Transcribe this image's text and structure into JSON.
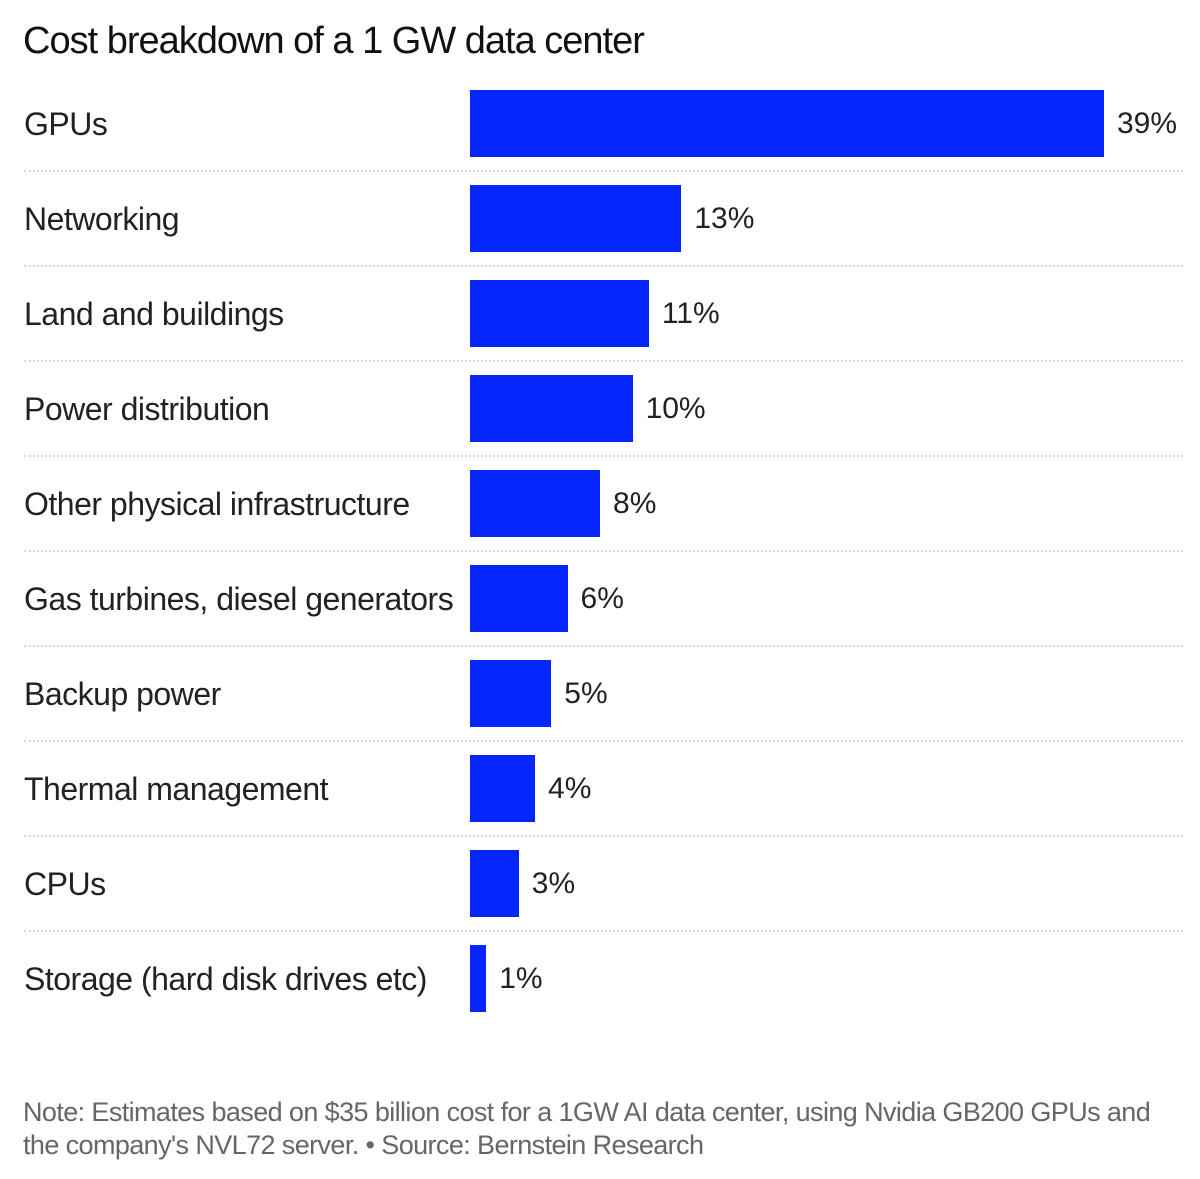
{
  "chart_data": {
    "type": "bar",
    "orientation": "horizontal",
    "title": "Cost breakdown of a 1 GW data center",
    "categories": [
      "GPUs",
      "Networking",
      "Land and buildings",
      "Power distribution",
      "Other physical infrastructure",
      "Gas turbines, diesel generators",
      "Backup power",
      "Thermal management",
      "CPUs",
      "Storage (hard disk drives etc)"
    ],
    "values": [
      39,
      13,
      11,
      10,
      8,
      6,
      5,
      4,
      3,
      1
    ],
    "value_labels": [
      "39%",
      "13%",
      "11%",
      "10%",
      "8%",
      "6%",
      "5%",
      "4%",
      "3%",
      "1%"
    ],
    "xlim": [
      0,
      39
    ],
    "unit": "%",
    "bar_color": "#0626fb",
    "grid": false,
    "note": "Note: Estimates based on $35 billion cost for a 1GW AI data center, using Nvidia GB200 GPUs and the company's NVL72 server. • Source: Bernstein Research"
  }
}
